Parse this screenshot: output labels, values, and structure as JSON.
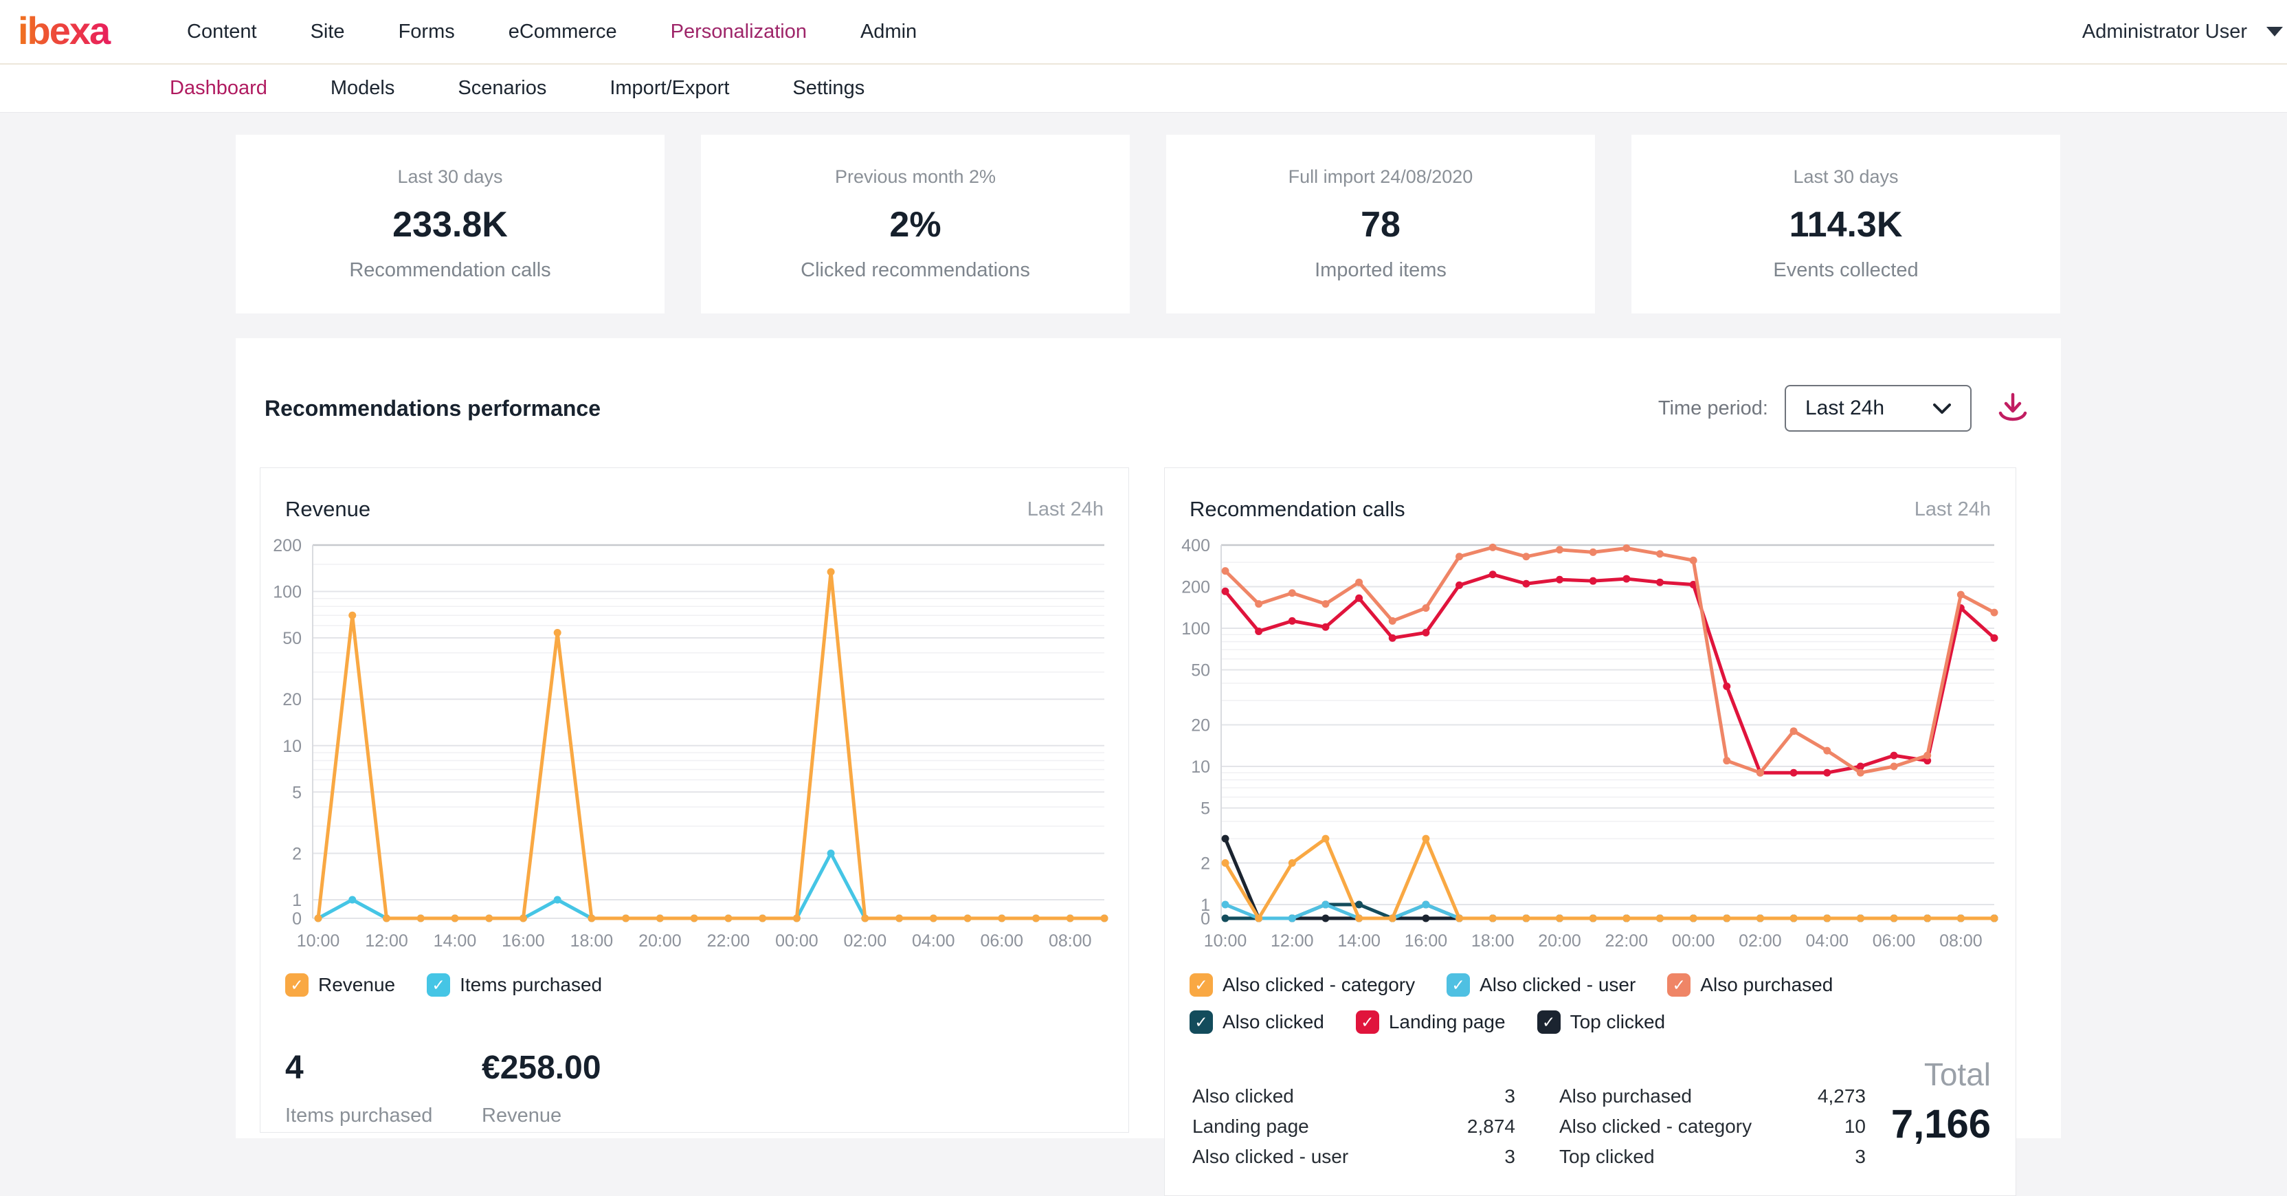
{
  "colors": {
    "top_nav_active": "#9e2569",
    "sub_nav_active": "#b01b60",
    "download_icon": "#c11d61",
    "logo_gradient": [
      "#f0741f",
      "#ec4040",
      "#e81e5e"
    ]
  },
  "top_nav": {
    "logo_text": "ibexa",
    "items": [
      {
        "label": "Content",
        "active": false
      },
      {
        "label": "Site",
        "active": false
      },
      {
        "label": "Forms",
        "active": false
      },
      {
        "label": "eCommerce",
        "active": false
      },
      {
        "label": "Personalization",
        "active": true
      },
      {
        "label": "Admin",
        "active": false
      }
    ],
    "user": "Administrator User"
  },
  "sub_nav": {
    "items": [
      {
        "label": "Dashboard",
        "active": true
      },
      {
        "label": "Models",
        "active": false
      },
      {
        "label": "Scenarios",
        "active": false
      },
      {
        "label": "Import/Export",
        "active": false
      },
      {
        "label": "Settings",
        "active": false
      }
    ]
  },
  "stat_cards": [
    {
      "period": "Last 30 days",
      "value": "233.8K",
      "label": "Recommendation calls"
    },
    {
      "period": "Previous month 2%",
      "value": "2%",
      "label": "Clicked recommendations"
    },
    {
      "period": "Full import 24/08/2020",
      "value": "78",
      "label": "Imported items"
    },
    {
      "period": "Last 30 days",
      "value": "114.3K",
      "label": "Events collected"
    }
  ],
  "performance": {
    "title": "Recommendations performance",
    "time_period_label": "Time period:",
    "time_period_value": "Last 24h"
  },
  "chart_data": [
    {
      "type": "line",
      "title": "Revenue",
      "range_label": "Last 24h",
      "y_scale": "log",
      "x": [
        "10:00",
        "11:00",
        "12:00",
        "13:00",
        "14:00",
        "15:00",
        "16:00",
        "17:00",
        "18:00",
        "19:00",
        "20:00",
        "21:00",
        "22:00",
        "23:00",
        "00:00",
        "01:00",
        "02:00",
        "03:00",
        "04:00",
        "05:00",
        "06:00",
        "07:00",
        "08:00",
        "09:00"
      ],
      "x_tick_every": 2,
      "axis_ticks": [
        200,
        100,
        50,
        20,
        10,
        5,
        2,
        1,
        0
      ],
      "minor_ticks": [
        3,
        4,
        6,
        7,
        8,
        9,
        30,
        40,
        60,
        70,
        80,
        90,
        150
      ],
      "series": [
        {
          "name": "Revenue",
          "color": "#f9a843",
          "values": [
            0,
            70,
            0,
            0,
            0,
            0,
            0,
            54,
            0,
            0,
            0,
            0,
            0,
            0,
            0,
            134,
            0,
            0,
            0,
            0,
            0,
            0,
            0,
            0
          ]
        },
        {
          "name": "Items purchased",
          "color": "#45c5e5",
          "values": [
            0,
            1,
            0,
            0,
            0,
            0,
            0,
            1,
            0,
            0,
            0,
            0,
            0,
            0,
            0,
            2,
            0,
            0,
            0,
            0,
            0,
            0,
            0,
            0
          ]
        }
      ],
      "draw_order": [
        1,
        0
      ],
      "summary": [
        {
          "value": "4",
          "label": "Items purchased"
        },
        {
          "value": "€258.00",
          "label": "Revenue"
        }
      ]
    },
    {
      "type": "line",
      "title": "Recommendation calls",
      "range_label": "Last 24h",
      "y_scale": "log",
      "x": [
        "10:00",
        "11:00",
        "12:00",
        "13:00",
        "14:00",
        "15:00",
        "16:00",
        "17:00",
        "18:00",
        "19:00",
        "20:00",
        "21:00",
        "22:00",
        "23:00",
        "00:00",
        "01:00",
        "02:00",
        "03:00",
        "04:00",
        "05:00",
        "06:00",
        "07:00",
        "08:00",
        "09:00"
      ],
      "x_tick_every": 2,
      "axis_ticks": [
        400,
        200,
        100,
        50,
        20,
        10,
        5,
        2,
        1,
        0
      ],
      "minor_ticks": [
        3,
        4,
        6,
        7,
        8,
        9,
        30,
        40,
        60,
        70,
        80,
        90,
        150,
        300
      ],
      "series": [
        {
          "name": "Also clicked - category",
          "color": "#f9a843",
          "values": [
            2,
            0,
            2,
            3,
            0,
            0,
            3,
            0,
            0,
            0,
            0,
            0,
            0,
            0,
            0,
            0,
            0,
            0,
            0,
            0,
            0,
            0,
            0,
            0
          ]
        },
        {
          "name": "Also clicked - user",
          "color": "#4fc0e2",
          "values": [
            1,
            0,
            0,
            1,
            0,
            0,
            1,
            0,
            0,
            0,
            0,
            0,
            0,
            0,
            0,
            0,
            0,
            0,
            0,
            0,
            0,
            0,
            0,
            0
          ]
        },
        {
          "name": "Also purchased",
          "color": "#ef8566",
          "values": [
            260,
            150,
            180,
            150,
            215,
            113,
            140,
            330,
            385,
            330,
            370,
            355,
            380,
            345,
            310,
            11,
            9,
            18,
            13,
            9,
            10,
            12,
            175,
            130
          ]
        },
        {
          "name": "Also clicked",
          "color": "#134c5c",
          "values": [
            0,
            0,
            0,
            1,
            1,
            0,
            1,
            0,
            0,
            0,
            0,
            0,
            0,
            0,
            0,
            0,
            0,
            0,
            0,
            0,
            0,
            0,
            0,
            0
          ]
        },
        {
          "name": "Landing page",
          "color": "#e0143c",
          "values": [
            185,
            95,
            113,
            102,
            165,
            85,
            93,
            205,
            245,
            210,
            225,
            220,
            228,
            215,
            207,
            38,
            9,
            9,
            9,
            10,
            12,
            11,
            140,
            85
          ]
        },
        {
          "name": "Top clicked",
          "color": "#1b2430",
          "values": [
            3,
            0,
            0,
            0,
            0,
            0,
            0,
            0,
            0,
            0,
            0,
            0,
            0,
            0,
            0,
            0,
            0,
            0,
            0,
            0,
            0,
            0,
            0,
            0
          ]
        }
      ],
      "draw_order": [
        5,
        3,
        1,
        0,
        4,
        2
      ],
      "table": {
        "rows": [
          {
            "c1_label": "Also clicked",
            "c1_value": "3",
            "c2_label": "Also purchased",
            "c2_value": "4,273"
          },
          {
            "c1_label": "Landing page",
            "c1_value": "2,874",
            "c2_label": "Also clicked - category",
            "c2_value": "10"
          },
          {
            "c1_label": "Also clicked - user",
            "c1_value": "3",
            "c2_label": "Top clicked",
            "c2_value": "3"
          }
        ]
      },
      "total": {
        "label": "Total",
        "value": "7,166"
      }
    }
  ]
}
